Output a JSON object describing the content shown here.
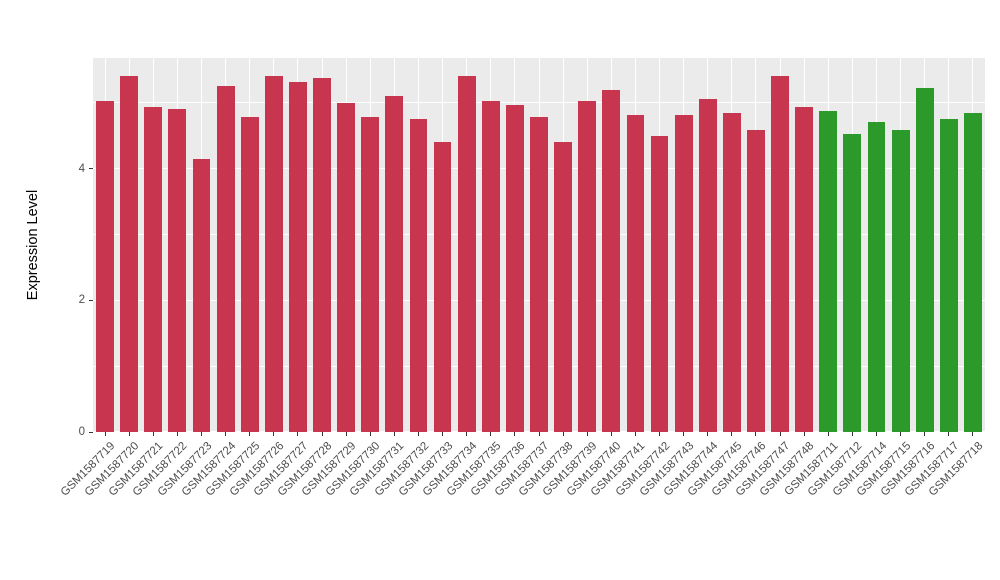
{
  "figure": {
    "background": "#FFFFFF",
    "panel_background": "#EBEBEB",
    "gridline_color": "#FFFFFF",
    "axis_text_color": "#4D4D4D",
    "axis_title_color": "#000000"
  },
  "chart_data": {
    "type": "bar",
    "title": "",
    "xlabel": "",
    "ylabel": "Expression Level",
    "ylim": [
      0,
      5.68
    ],
    "yticks": [
      0,
      2,
      4
    ],
    "yticks_minor": [
      1,
      3,
      5
    ],
    "grid": true,
    "legend_position": "none",
    "bar_groups": [
      {
        "name": "red-group",
        "color": "#C8354E",
        "from": 0,
        "to": 29
      },
      {
        "name": "green-group",
        "color": "#2B9A2B",
        "from": 30,
        "to": 36
      }
    ],
    "categories": [
      "GSM1587719",
      "GSM1587720",
      "GSM1587721",
      "GSM1587722",
      "GSM1587723",
      "GSM1587724",
      "GSM1587725",
      "GSM1587726",
      "GSM1587727",
      "GSM1587728",
      "GSM1587729",
      "GSM1587730",
      "GSM1587731",
      "GSM1587732",
      "GSM1587733",
      "GSM1587734",
      "GSM1587735",
      "GSM1587736",
      "GSM1587737",
      "GSM1587738",
      "GSM1587739",
      "GSM1587740",
      "GSM1587741",
      "GSM1587742",
      "GSM1587743",
      "GSM1587744",
      "GSM1587745",
      "GSM1587746",
      "GSM1587747",
      "GSM1587748",
      "GSM1587711",
      "GSM1587712",
      "GSM1587714",
      "GSM1587715",
      "GSM1587716",
      "GSM1587717",
      "GSM1587718"
    ],
    "values": [
      5.03,
      5.41,
      4.93,
      4.91,
      4.14,
      5.25,
      4.79,
      5.4,
      5.31,
      5.37,
      5.0,
      4.79,
      5.1,
      4.76,
      4.41,
      5.4,
      5.03,
      4.96,
      4.78,
      4.4,
      5.02,
      5.19,
      4.81,
      4.49,
      4.82,
      5.05,
      4.85,
      4.59,
      5.41,
      4.94,
      4.87,
      4.52,
      4.71,
      4.59,
      5.23,
      4.76,
      4.85
    ]
  }
}
